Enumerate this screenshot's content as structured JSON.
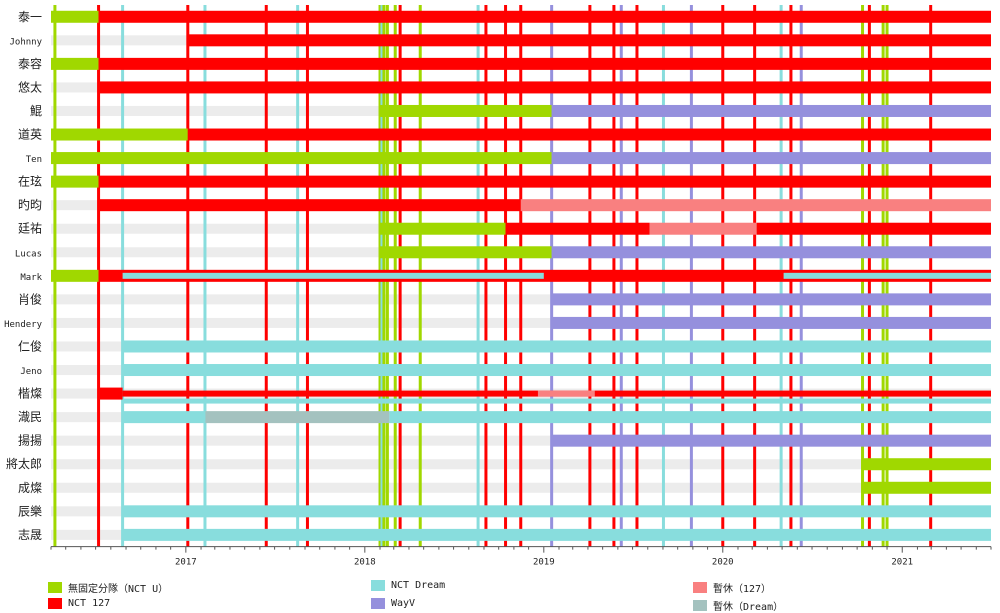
{
  "chart_data": {
    "type": "timeline",
    "title": "",
    "x_range": [
      "2016-04-01",
      "2021-07-01"
    ],
    "x_ticks": [
      "2017",
      "2018",
      "2019",
      "2020",
      "2021"
    ],
    "members": [
      "泰一",
      "Johnny",
      "泰容",
      "悠太",
      "鯤",
      "道英",
      "Ten",
      "在玹",
      "旳昀",
      "廷祐",
      "Lucas",
      "Mark",
      "肖俊",
      "Hendery",
      "仁俊",
      "Jeno",
      "楷燦",
      "渽民",
      "揚揚",
      "將太郎",
      "成燦",
      "辰樂",
      "志晟"
    ],
    "categories": [
      {
        "key": "u",
        "label": "無固定分隊（NCT U）",
        "color": "#a0d800"
      },
      {
        "key": "127",
        "label": "NCT 127",
        "color": "#ff0000"
      },
      {
        "key": "dream",
        "label": "NCT Dream",
        "color": "#88dddd"
      },
      {
        "key": "wayv",
        "label": "WayV",
        "color": "#9590dd"
      },
      {
        "key": "h127",
        "label": "暫休（127）",
        "color": "#f98080"
      },
      {
        "key": "hdream",
        "label": "暫休（Dream）",
        "color": "#a4c2bf"
      }
    ],
    "segments": [
      {
        "member": "泰一",
        "type": "u",
        "start": "2016-04-01",
        "end": "2016-07-07"
      },
      {
        "member": "泰一",
        "type": "127",
        "start": "2016-07-07",
        "end": "2021-07-01"
      },
      {
        "member": "Johnny",
        "type": "127",
        "start": "2017-01-05",
        "end": "2021-07-01"
      },
      {
        "member": "泰容",
        "type": "u",
        "start": "2016-04-01",
        "end": "2016-07-07"
      },
      {
        "member": "泰容",
        "type": "127",
        "start": "2016-07-07",
        "end": "2021-07-01"
      },
      {
        "member": "悠太",
        "type": "127",
        "start": "2016-07-07",
        "end": "2021-07-01"
      },
      {
        "member": "鯤",
        "type": "u",
        "start": "2018-02-01",
        "end": "2019-01-17"
      },
      {
        "member": "鯤",
        "type": "wayv",
        "start": "2019-01-17",
        "end": "2021-07-01"
      },
      {
        "member": "道英",
        "type": "u",
        "start": "2016-04-01",
        "end": "2017-01-05"
      },
      {
        "member": "道英",
        "type": "127",
        "start": "2017-01-05",
        "end": "2021-07-01"
      },
      {
        "member": "Ten",
        "type": "u",
        "start": "2016-04-01",
        "end": "2019-01-17"
      },
      {
        "member": "Ten",
        "type": "wayv",
        "start": "2019-01-17",
        "end": "2021-07-01"
      },
      {
        "member": "在玹",
        "type": "u",
        "start": "2016-04-01",
        "end": "2016-07-07"
      },
      {
        "member": "在玹",
        "type": "127",
        "start": "2016-07-07",
        "end": "2021-07-01"
      },
      {
        "member": "旳昀",
        "type": "127",
        "start": "2016-07-07",
        "end": "2018-11-15"
      },
      {
        "member": "旳昀",
        "type": "h127",
        "start": "2018-11-15",
        "end": "2021-07-01"
      },
      {
        "member": "廷祐",
        "type": "u",
        "start": "2018-02-01",
        "end": "2018-10-15"
      },
      {
        "member": "廷祐",
        "type": "127",
        "start": "2018-10-15",
        "end": "2019-08-05"
      },
      {
        "member": "廷祐",
        "type": "h127",
        "start": "2019-08-05",
        "end": "2020-03-10"
      },
      {
        "member": "廷祐",
        "type": "127",
        "start": "2020-03-10",
        "end": "2021-07-01"
      },
      {
        "member": "Lucas",
        "type": "u",
        "start": "2018-02-01",
        "end": "2019-01-17"
      },
      {
        "member": "Lucas",
        "type": "wayv",
        "start": "2019-01-17",
        "end": "2021-07-01"
      },
      {
        "member": "Mark",
        "type": "u",
        "start": "2016-04-01",
        "end": "2016-07-07"
      },
      {
        "member": "Mark",
        "type": "127",
        "start": "2016-07-07",
        "end": "2021-07-01"
      },
      {
        "member": "Mark",
        "type": "dream",
        "start": "2016-08-25",
        "end": "2019-01-01",
        "thin": true
      },
      {
        "member": "Mark",
        "type": "dream",
        "start": "2020-05-04",
        "end": "2021-07-01",
        "thin": true
      },
      {
        "member": "肖俊",
        "type": "wayv",
        "start": "2019-01-17",
        "end": "2021-07-01"
      },
      {
        "member": "Hendery",
        "type": "wayv",
        "start": "2019-01-17",
        "end": "2021-07-01"
      },
      {
        "member": "仁俊",
        "type": "dream",
        "start": "2016-08-25",
        "end": "2021-07-01"
      },
      {
        "member": "Jeno",
        "type": "dream",
        "start": "2016-08-25",
        "end": "2021-07-01"
      },
      {
        "member": "楷燦",
        "type": "127",
        "start": "2016-07-07",
        "end": "2016-08-25"
      },
      {
        "member": "楷燦",
        "type": "127",
        "start": "2016-08-25",
        "end": "2021-07-01",
        "thin": true
      },
      {
        "member": "楷燦",
        "type": "h127",
        "start": "2018-12-20",
        "end": "2019-04-15",
        "thin": true
      },
      {
        "member": "楷燦",
        "type": "dream",
        "start": "2016-08-25",
        "end": "2021-07-01",
        "lower": true
      },
      {
        "member": "渽民",
        "type": "dream",
        "start": "2016-08-25",
        "end": "2017-02-10"
      },
      {
        "member": "渽民",
        "type": "hdream",
        "start": "2017-02-10",
        "end": "2018-02-20"
      },
      {
        "member": "渽民",
        "type": "dream",
        "start": "2018-02-20",
        "end": "2021-07-01"
      },
      {
        "member": "揚揚",
        "type": "wayv",
        "start": "2019-01-17",
        "end": "2021-07-01"
      },
      {
        "member": "將太郎",
        "type": "u",
        "start": "2020-10-12",
        "end": "2021-07-01"
      },
      {
        "member": "成燦",
        "type": "u",
        "start": "2020-10-12",
        "end": "2021-07-01"
      },
      {
        "member": "辰樂",
        "type": "dream",
        "start": "2016-08-25",
        "end": "2021-07-01"
      },
      {
        "member": "志晟",
        "type": "dream",
        "start": "2016-08-25",
        "end": "2021-07-01"
      }
    ],
    "release_lines": [
      {
        "date": "2016-04-09",
        "type": "u"
      },
      {
        "date": "2016-07-07",
        "type": "127"
      },
      {
        "date": "2016-08-25",
        "type": "dream"
      },
      {
        "date": "2017-01-05",
        "type": "127"
      },
      {
        "date": "2017-02-09",
        "type": "dream"
      },
      {
        "date": "2017-06-14",
        "type": "127"
      },
      {
        "date": "2017-08-17",
        "type": "dream"
      },
      {
        "date": "2017-09-06",
        "type": "127"
      },
      {
        "date": "2018-02-01",
        "type": "u"
      },
      {
        "date": "2018-02-05",
        "type": "dream"
      },
      {
        "date": "2018-02-09",
        "type": "u"
      },
      {
        "date": "2018-02-16",
        "type": "u"
      },
      {
        "date": "2018-03-04",
        "type": "u"
      },
      {
        "date": "2018-03-14",
        "type": "127"
      },
      {
        "date": "2018-04-24",
        "type": "u"
      },
      {
        "date": "2018-08-20",
        "type": "dream"
      },
      {
        "date": "2018-09-05",
        "type": "127"
      },
      {
        "date": "2018-10-15",
        "type": "127"
      },
      {
        "date": "2018-11-15",
        "type": "127"
      },
      {
        "date": "2019-01-17",
        "type": "wayv"
      },
      {
        "date": "2019-04-05",
        "type": "127"
      },
      {
        "date": "2019-05-24",
        "type": "127"
      },
      {
        "date": "2019-06-08",
        "type": "wayv"
      },
      {
        "date": "2019-07-10",
        "type": "127"
      },
      {
        "date": "2019-09-02",
        "type": "dream"
      },
      {
        "date": "2019-10-29",
        "type": "wayv"
      },
      {
        "date": "2020-01-01",
        "type": "127"
      },
      {
        "date": "2020-03-06",
        "type": "127"
      },
      {
        "date": "2020-04-29",
        "type": "dream"
      },
      {
        "date": "2020-05-19",
        "type": "127"
      },
      {
        "date": "2020-06-09",
        "type": "wayv"
      },
      {
        "date": "2020-10-12",
        "type": "u"
      },
      {
        "date": "2020-10-26",
        "type": "127"
      },
      {
        "date": "2020-11-23",
        "type": "u"
      },
      {
        "date": "2020-12-01",
        "type": "u"
      },
      {
        "date": "2021-02-28",
        "type": "127"
      }
    ],
    "legend_position": "bottom"
  }
}
